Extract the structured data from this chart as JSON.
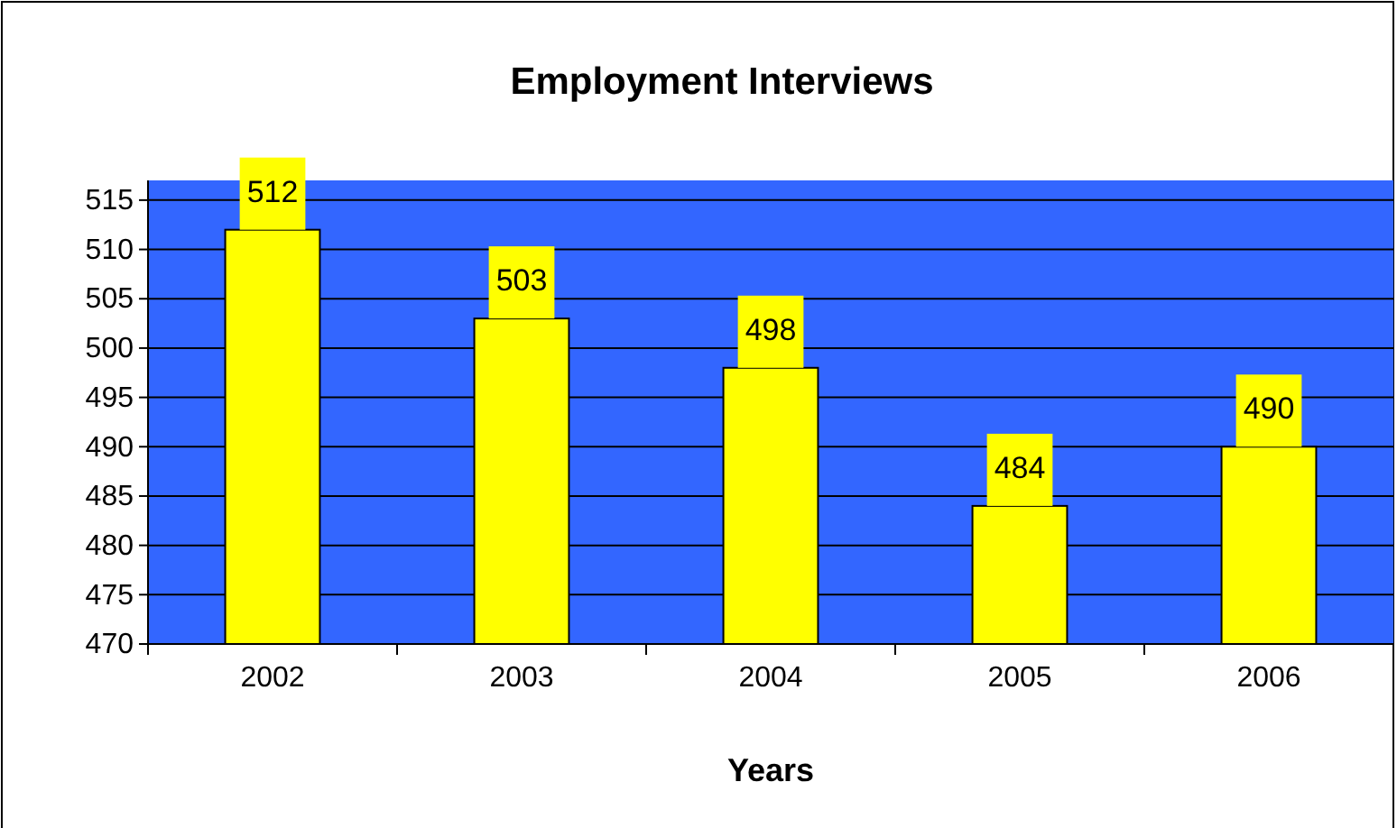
{
  "chart_data": {
    "type": "bar",
    "title": "Employment Interviews",
    "xlabel": "Years",
    "categories": [
      "2002",
      "2003",
      "2004",
      "2005",
      "2006"
    ],
    "values": [
      512,
      503,
      498,
      484,
      490
    ],
    "color": "#ffff00",
    "ylim": [
      470,
      517
    ],
    "yticks": [
      470,
      475,
      480,
      485,
      490,
      495,
      500,
      505,
      510,
      515
    ],
    "grid": "y",
    "data_labels": true
  }
}
